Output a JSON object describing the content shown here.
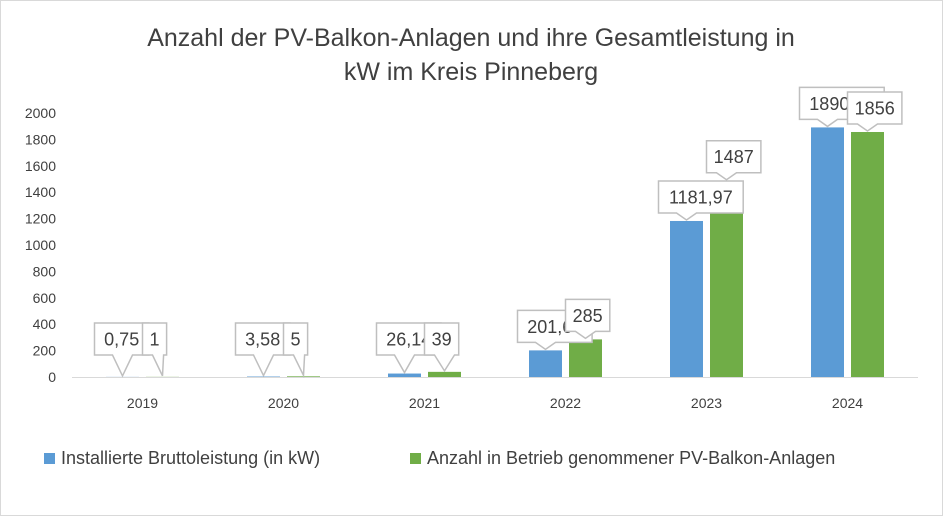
{
  "chart_data": {
    "type": "bar",
    "title": "Anzahl der PV-Balkon-Anlagen und ihre Gesamtleistung in kW im Kreis Pinneberg",
    "title_lines": [
      "Anzahl der PV-Balkon-Anlagen und ihre Gesamtleistung in",
      "kW im Kreis Pinneberg"
    ],
    "categories": [
      "2019",
      "2020",
      "2021",
      "2022",
      "2023",
      "2024"
    ],
    "series": [
      {
        "name": "Installierte Bruttoleistung (in kW)",
        "color": "#5b9bd5",
        "values": [
          0.75,
          3.58,
          26.14,
          201.64,
          1181.97,
          1890.84
        ],
        "labels": [
          "0,75",
          "3,58",
          "26,14",
          "201,64",
          "1181,97",
          "1890,84"
        ]
      },
      {
        "name": "Anzahl in Betrieb genommener PV-Balkon-Anlagen",
        "color": "#70ad47",
        "values": [
          1,
          5,
          39,
          285,
          1487,
          1856
        ],
        "labels": [
          "1",
          "5",
          "39",
          "285",
          "1487",
          "1856"
        ]
      }
    ],
    "y_ticks": [
      "0",
      "200",
      "400",
      "600",
      "800",
      "1000",
      "1200",
      "1400",
      "1600",
      "1800",
      "2000"
    ],
    "ylim": [
      0,
      2000
    ],
    "grid": false,
    "legend": "bottom",
    "data_labels": "callout"
  }
}
